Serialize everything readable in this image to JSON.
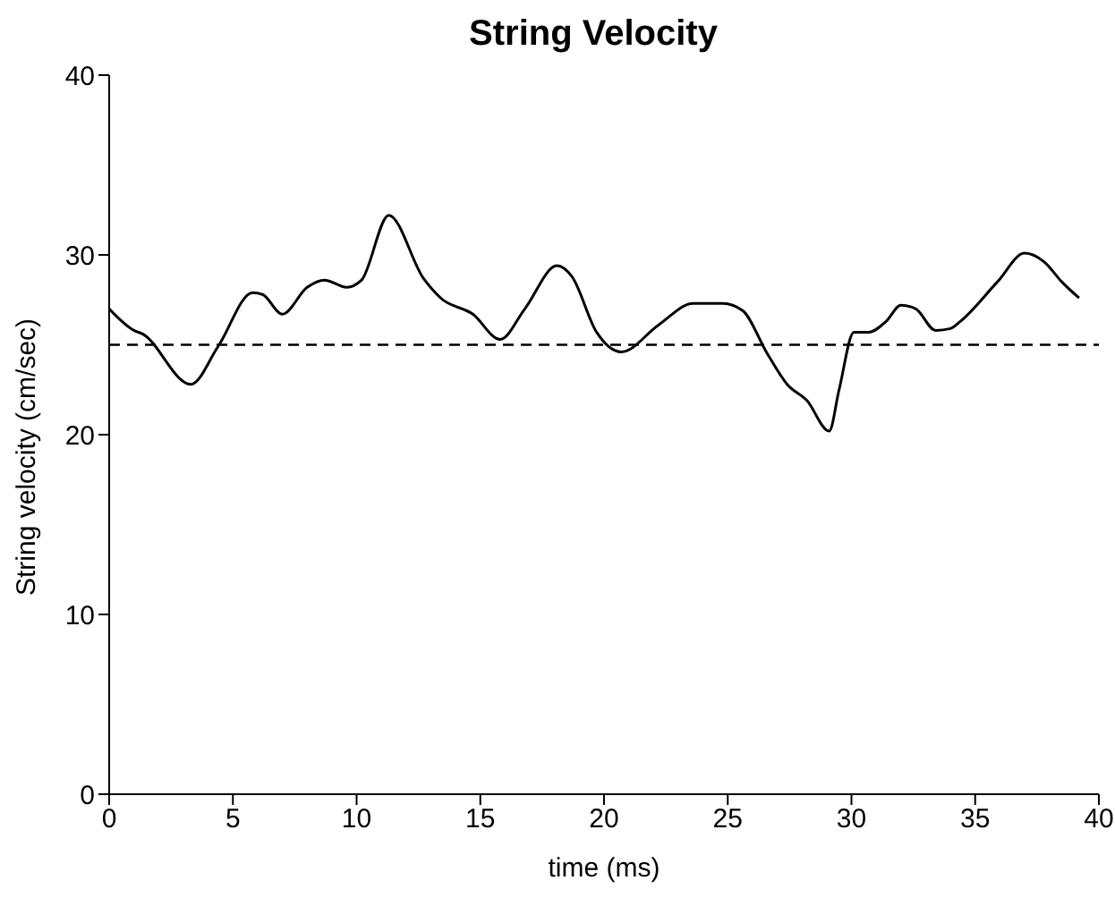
{
  "chart_data": {
    "type": "line",
    "title": "String Velocity",
    "xlabel": "time (ms)",
    "ylabel": "String velocity (cm/sec)",
    "x": [
      0,
      1.0,
      1.35,
      3.3,
      4.4,
      5.8,
      6.2,
      7.0,
      8.0,
      8.7,
      9.6,
      10.2,
      11.3,
      12.7,
      13.4,
      14.7,
      15.8,
      16.8,
      18.1,
      18.7,
      19.7,
      20.7,
      22.2,
      23.6,
      24.8,
      25.6,
      26.6,
      27.4,
      28.2,
      29.1,
      29.5,
      30.1,
      30.7,
      31.4,
      32.0,
      32.6,
      33.4,
      34.0,
      34.4,
      35.9,
      37.0,
      37.8,
      38.5,
      39.2
    ],
    "series": [
      {
        "color": "#000000",
        "values": [
          27.0,
          25.8,
          25.6,
          22.8,
          24.9,
          27.9,
          27.8,
          26.7,
          28.2,
          28.6,
          28.2,
          28.6,
          32.2,
          28.7,
          27.6,
          26.7,
          25.3,
          27.0,
          29.4,
          28.8,
          25.7,
          24.6,
          26.1,
          27.3,
          27.3,
          26.9,
          24.5,
          22.8,
          21.9,
          20.2,
          22.5,
          25.7,
          25.7,
          26.3,
          27.2,
          27.0,
          25.8,
          25.9,
          26.3,
          28.5,
          30.1,
          29.6,
          28.5,
          27.6
        ]
      }
    ],
    "xlim": [
      0,
      40
    ],
    "xticks": [
      0,
      5,
      10,
      15,
      20,
      25,
      30,
      35,
      40
    ],
    "ylim": [
      0,
      40
    ],
    "yticks": [
      0,
      10,
      20,
      30,
      40
    ],
    "ref_lines": [
      {
        "axis": "y",
        "value": 25,
        "color": "#000000",
        "line_style": "dashed"
      }
    ],
    "grid": false,
    "legend": false,
    "marker": "none",
    "line_style": "solid"
  }
}
